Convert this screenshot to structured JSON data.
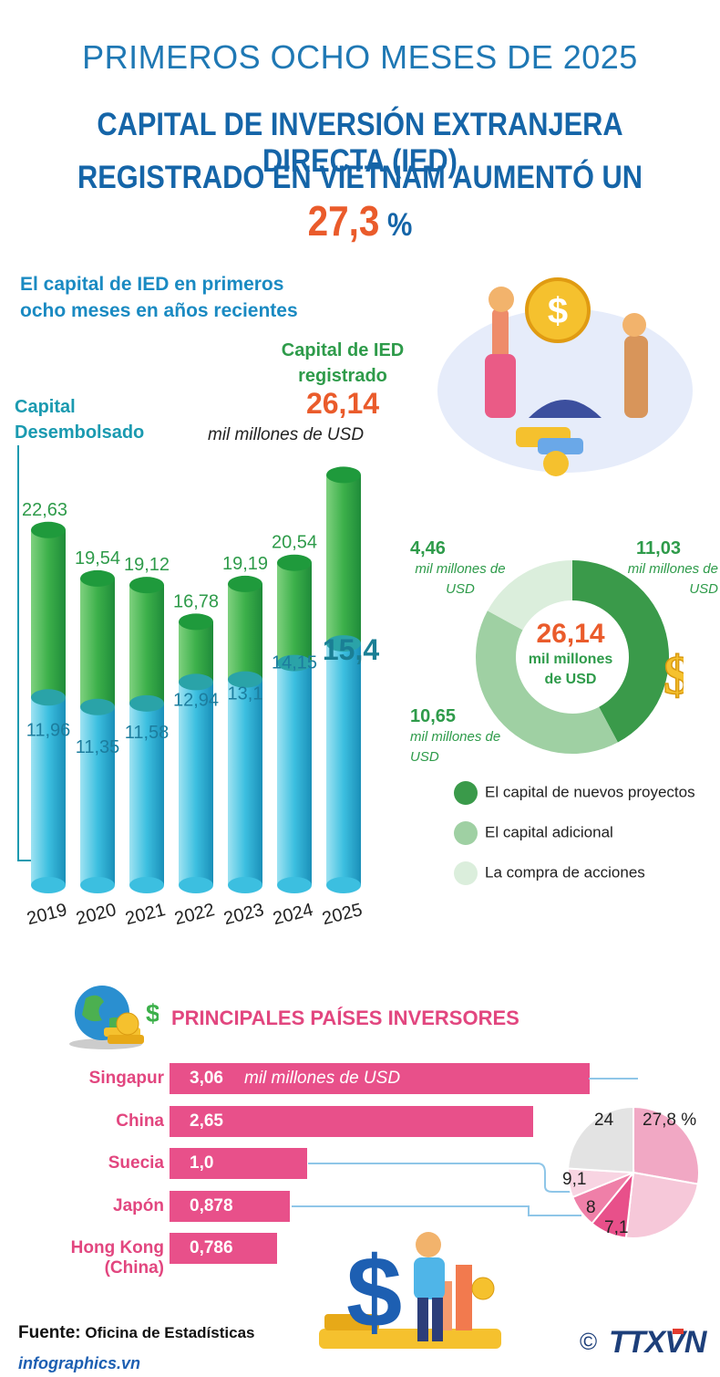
{
  "header": {
    "top_line": "PRIMEROS OCHO MESES DE 2025",
    "title_line1": "CAPITAL DE INVERSIÓN EXTRANJERA DIRECTA (IED)",
    "title_line2": "REGISTRADO EN VIETNAM AUMENTÓ UN",
    "highlight_value": "27,3",
    "highlight_unit": "%"
  },
  "section1": {
    "subtitle_line1": "El capital de IED en primeros",
    "subtitle_line2": "ocho meses en años recientes",
    "registered_label_line1": "Capital de IED",
    "registered_label_line2": "registrado",
    "registered_total": "26,14",
    "registered_unit": "mil millones de USD",
    "disbursed_label_line1": "Capital",
    "disbursed_label_line2": "Desembolsado"
  },
  "chart_data": [
    {
      "type": "bar",
      "categories": [
        "2019",
        "2020",
        "2021",
        "2022",
        "2023",
        "2024",
        "2025"
      ],
      "series": [
        {
          "name": "Capital de IED registrado",
          "values": [
            22.63,
            19.54,
            19.12,
            16.78,
            19.19,
            20.54,
            26.14
          ],
          "labels": [
            "22,63",
            "19,54",
            "19,12",
            "16,78",
            "19,19",
            "20,54",
            ""
          ]
        },
        {
          "name": "Capital Desembolsado",
          "values": [
            11.96,
            11.35,
            11.58,
            12.94,
            13.1,
            14.15,
            15.4
          ],
          "labels": [
            "11,96",
            "11,35",
            "11,58",
            "12,94",
            "13,1",
            "14,15",
            "15,4"
          ]
        }
      ],
      "unit": "mil millones de USD"
    },
    {
      "type": "pie",
      "title": "26,14",
      "subtitle": "mil millones de USD",
      "slices": [
        {
          "name": "El capital de nuevos proyectos",
          "value": 11.03,
          "label": "11,03",
          "unit": "mil millones de USD",
          "color": "#3a9a4a"
        },
        {
          "name": "El capital adicional",
          "value": 10.65,
          "label": "10,65",
          "unit": "mil millones de USD",
          "color": "#9fd0a3"
        },
        {
          "name": "La compra de acciones",
          "value": 4.46,
          "label": "4,46",
          "unit": "mil millones de USD",
          "color": "#dbeedc"
        }
      ]
    },
    {
      "type": "bar",
      "title": "PRINCIPALES PAÍSES INVERSORES",
      "categories": [
        "Singapur",
        "China",
        "Suecia",
        "Japón",
        "Hong Kong (China)"
      ],
      "values": [
        3.06,
        2.65,
        1.0,
        0.878,
        0.786
      ],
      "labels": [
        "3,06",
        "2,65",
        "1,0",
        "0,878",
        "0,786"
      ],
      "unit": "mil millones de USD",
      "color": "#e8508a"
    },
    {
      "type": "pie",
      "slices": [
        {
          "name": "Singapur",
          "value": 27.8,
          "label": "27,8 %",
          "color": "#f1a8c4"
        },
        {
          "name": "China",
          "value": 24,
          "label": "24",
          "color": "#f6c8d9"
        },
        {
          "name": "Suecia",
          "value": 9.1,
          "label": "9,1",
          "color": "#e8508a"
        },
        {
          "name": "Japón",
          "value": 8,
          "label": "8",
          "color": "#ef7fa8"
        },
        {
          "name": "Hong Kong (China)",
          "value": 7.1,
          "label": "7,1",
          "color": "#f8d4e2"
        },
        {
          "name": "",
          "value": 24,
          "label": "",
          "color": "#e3e3e3"
        }
      ]
    }
  ],
  "footer": {
    "source_label": "Fuente:",
    "source_value": "Oficina de Estadísticas",
    "website": "infographics.vn",
    "copyright": "©",
    "agency": "TTXVN"
  }
}
